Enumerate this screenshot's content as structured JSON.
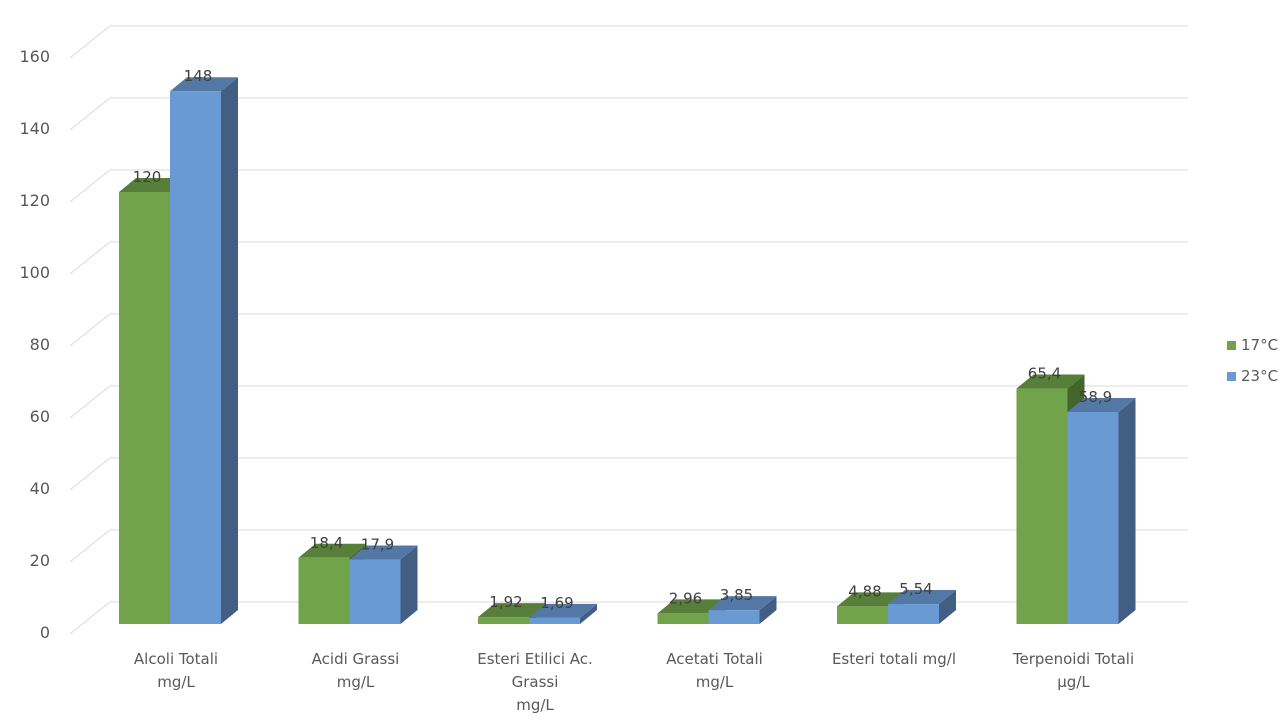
{
  "chart_data": {
    "type": "bar",
    "style": "3d-clustered-column",
    "categories": [
      [
        "Alcoli Totali",
        "mg/L"
      ],
      [
        "Acidi Grassi",
        "mg/L"
      ],
      [
        "Esteri Etilici Ac.",
        "Grassi",
        "mg/L"
      ],
      [
        "Acetati Totali",
        "mg/L"
      ],
      [
        "Esteri totali mg/l"
      ],
      [
        "Terpenoidi Totali",
        "µg/L"
      ]
    ],
    "series": [
      {
        "name": "17°C",
        "color": "#70a34a",
        "values": [
          120,
          18.4,
          1.92,
          2.96,
          4.88,
          65.4
        ],
        "labels": [
          "120",
          "18,4",
          "1,92",
          "2,96",
          "4,88",
          "65,4"
        ]
      },
      {
        "name": "23°C",
        "color": "#6a9ad3",
        "values": [
          148,
          17.9,
          1.69,
          3.85,
          5.54,
          58.9
        ],
        "labels": [
          "148",
          "17,9",
          "1,69",
          "3,85",
          "5,54",
          "58,9"
        ]
      }
    ],
    "ylim": [
      0,
      160
    ],
    "yticks": [
      "0",
      "20",
      "40",
      "60",
      "80",
      "100",
      "120",
      "140",
      "160"
    ],
    "grid": true,
    "legend_position": "right",
    "title": "",
    "xlabel": "",
    "ylabel": ""
  }
}
